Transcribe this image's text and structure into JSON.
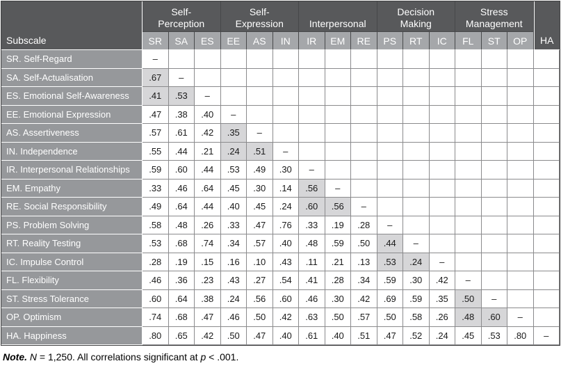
{
  "colors": {
    "header_dark": "#58595B",
    "header_abbr_bg": "#A5A7AA",
    "row_label_bg": "#96989B",
    "shaded_cell_bg": "#D6D6D8",
    "grid_line": "#8A8A8C",
    "outer_border": "#404041",
    "header_separator": "#47484A",
    "label_separator": "#FFFFFF",
    "header_text": "#FFFFFF",
    "cell_text": "#1A1A1A"
  },
  "table": {
    "corner_label": "Subscale",
    "diagonal_symbol": "–",
    "groups": [
      {
        "label": "Self-\nPerception",
        "cols": [
          "SR",
          "SA",
          "ES"
        ]
      },
      {
        "label": "Self-\nExpression",
        "cols": [
          "EE",
          "AS",
          "IN"
        ]
      },
      {
        "label": "Interpersonal",
        "cols": [
          "IR",
          "EM",
          "RE"
        ]
      },
      {
        "label": "Decision\nMaking",
        "cols": [
          "PS",
          "RT",
          "IC"
        ]
      },
      {
        "label": "Stress\nManagement",
        "cols": [
          "FL",
          "ST",
          "OP"
        ]
      }
    ],
    "ungrouped_columns": [
      "HA"
    ],
    "columns": [
      "SR",
      "SA",
      "ES",
      "EE",
      "AS",
      "IN",
      "IR",
      "EM",
      "RE",
      "PS",
      "RT",
      "IC",
      "FL",
      "ST",
      "OP",
      "HA"
    ],
    "rows": [
      {
        "abbr": "SR",
        "label": "SR. Self-Regard",
        "values": [
          "–"
        ]
      },
      {
        "abbr": "SA",
        "label": "SA. Self-Actualisation",
        "values": [
          ".67",
          "–"
        ]
      },
      {
        "abbr": "ES",
        "label": "ES. Emotional Self-Awareness",
        "values": [
          ".41",
          ".53",
          "–"
        ]
      },
      {
        "abbr": "EE",
        "label": "EE. Emotional Expression",
        "values": [
          ".47",
          ".38",
          ".40",
          "–"
        ]
      },
      {
        "abbr": "AS",
        "label": "AS. Assertiveness",
        "values": [
          ".57",
          ".61",
          ".42",
          ".35",
          "–"
        ]
      },
      {
        "abbr": "IN",
        "label": "IN. Independence",
        "values": [
          ".55",
          ".44",
          ".21",
          ".24",
          ".51",
          "–"
        ]
      },
      {
        "abbr": "IR",
        "label": "IR. Interpersonal Relationships",
        "values": [
          ".59",
          ".60",
          ".44",
          ".53",
          ".49",
          ".30",
          "–"
        ]
      },
      {
        "abbr": "EM",
        "label": "EM. Empathy",
        "values": [
          ".33",
          ".46",
          ".64",
          ".45",
          ".30",
          ".14",
          ".56",
          "–"
        ]
      },
      {
        "abbr": "RE",
        "label": "RE. Social Responsibility",
        "values": [
          ".49",
          ".64",
          ".44",
          ".40",
          ".45",
          ".24",
          ".60",
          ".56",
          "–"
        ]
      },
      {
        "abbr": "PS",
        "label": "PS. Problem Solving",
        "values": [
          ".58",
          ".48",
          ".26",
          ".33",
          ".47",
          ".76",
          ".33",
          ".19",
          ".28",
          "–"
        ]
      },
      {
        "abbr": "RT",
        "label": "RT. Reality Testing",
        "values": [
          ".53",
          ".68",
          ".74",
          ".34",
          ".57",
          ".40",
          ".48",
          ".59",
          ".50",
          ".44",
          "–"
        ]
      },
      {
        "abbr": "IC",
        "label": "IC. Impulse Control",
        "values": [
          ".28",
          ".19",
          ".15",
          ".16",
          ".10",
          ".43",
          ".11",
          ".21",
          ".13",
          ".53",
          ".24",
          "–"
        ]
      },
      {
        "abbr": "FL",
        "label": "FL. Flexibility",
        "values": [
          ".46",
          ".36",
          ".23",
          ".43",
          ".27",
          ".54",
          ".41",
          ".28",
          ".34",
          ".59",
          ".30",
          ".42",
          "–"
        ]
      },
      {
        "abbr": "ST",
        "label": "ST. Stress Tolerance",
        "values": [
          ".60",
          ".64",
          ".38",
          ".24",
          ".56",
          ".60",
          ".46",
          ".30",
          ".42",
          ".69",
          ".59",
          ".35",
          ".50",
          "–"
        ]
      },
      {
        "abbr": "OP",
        "label": "OP. Optimism",
        "values": [
          ".74",
          ".68",
          ".47",
          ".46",
          ".50",
          ".42",
          ".63",
          ".50",
          ".57",
          ".50",
          ".58",
          ".26",
          ".48",
          ".60",
          "–"
        ]
      },
      {
        "abbr": "HA",
        "label": "HA. Happiness",
        "values": [
          ".80",
          ".65",
          ".42",
          ".50",
          ".47",
          ".40",
          ".61",
          ".40",
          ".51",
          ".47",
          ".52",
          ".24",
          ".45",
          ".53",
          ".80",
          "–"
        ]
      }
    ]
  },
  "note": {
    "segments": [
      {
        "text": "Note.",
        "style": "bold-italic"
      },
      {
        "text": " ",
        "style": ""
      },
      {
        "text": "N",
        "style": "italic"
      },
      {
        "text": " = 1,250. All correlations significant at ",
        "style": ""
      },
      {
        "text": "p",
        "style": "italic"
      },
      {
        "text": " < .001.",
        "style": ""
      }
    ]
  }
}
